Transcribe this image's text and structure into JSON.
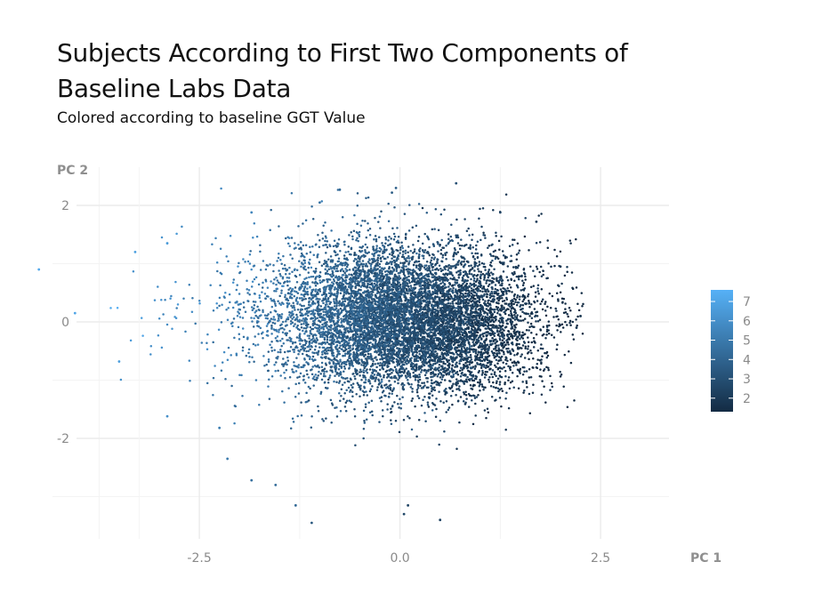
{
  "chart_data": {
    "type": "scatter",
    "title": "Subjects According to First Two Components of Baseline Labs Data",
    "subtitle": "Colored according to baseline GGT Value",
    "xlabel": "PC 1",
    "ylabel": "PC 2",
    "xlim": [
      -3.7,
      2.6
    ],
    "ylim": [
      -3.75,
      2.65
    ],
    "x_ticks": [
      -2.5,
      0.0,
      2.5
    ],
    "x_tick_labels": [
      "-2.5",
      "0.0",
      "2.5"
    ],
    "y_ticks": [
      -2,
      0,
      2
    ],
    "y_tick_labels": [
      "-2",
      "0",
      "2"
    ],
    "grid": true,
    "legend": {
      "title": "",
      "position": "right",
      "range": [
        1.3,
        7.6
      ],
      "ticks": [
        2,
        3,
        4,
        5,
        6,
        7
      ],
      "tick_labels": [
        "2",
        "3",
        "4",
        "5",
        "6",
        "7"
      ],
      "color_low": "#132b43",
      "color_high": "#56b1f7"
    },
    "cloud": {
      "n_points": 9000,
      "center": [
        0.2,
        0.0
      ],
      "sd": [
        0.75,
        0.62
      ],
      "color_value_note": "higher GGT values at lower PC1"
    },
    "points": [
      {
        "x": -4.5,
        "y": 0.9,
        "c": 7.2
      },
      {
        "x": -4.05,
        "y": 0.15,
        "c": 7.0
      },
      {
        "x": -3.5,
        "y": -0.68,
        "c": 6.7
      },
      {
        "x": -3.3,
        "y": 1.2,
        "c": 6.8
      },
      {
        "x": -2.9,
        "y": -1.62,
        "c": 6.0
      },
      {
        "x": -2.9,
        "y": 1.35,
        "c": 6.5
      },
      {
        "x": -2.25,
        "y": -1.82,
        "c": 5.2
      },
      {
        "x": -2.15,
        "y": -2.35,
        "c": 5.0
      },
      {
        "x": -1.85,
        "y": -2.72,
        "c": 4.5
      },
      {
        "x": -1.85,
        "y": 1.88,
        "c": 5.5
      },
      {
        "x": -1.55,
        "y": -2.8,
        "c": 4.3
      },
      {
        "x": -1.3,
        "y": -3.15,
        "c": 4.2
      },
      {
        "x": -1.1,
        "y": -3.45,
        "c": 3.4
      },
      {
        "x": -1.0,
        "y": 2.05,
        "c": 4.6
      },
      {
        "x": -0.75,
        "y": 2.27,
        "c": 4.2
      },
      {
        "x": -0.1,
        "y": 2.22,
        "c": 3.6
      },
      {
        "x": -0.05,
        "y": 2.3,
        "c": 3.8
      },
      {
        "x": 0.05,
        "y": -3.3,
        "c": 2.6
      },
      {
        "x": 0.1,
        "y": -3.15,
        "c": 2.5
      },
      {
        "x": 0.5,
        "y": -3.4,
        "c": 2.4
      },
      {
        "x": 0.7,
        "y": 2.38,
        "c": 3.0
      },
      {
        "x": 1.25,
        "y": 1.88,
        "c": 2.4
      },
      {
        "x": 1.7,
        "y": 1.72,
        "c": 2.0
      },
      {
        "x": 2.0,
        "y": 0.95,
        "c": 1.8
      },
      {
        "x": 2.25,
        "y": 0.1,
        "c": 1.7
      },
      {
        "x": 2.2,
        "y": -0.1,
        "c": 1.7
      }
    ]
  }
}
